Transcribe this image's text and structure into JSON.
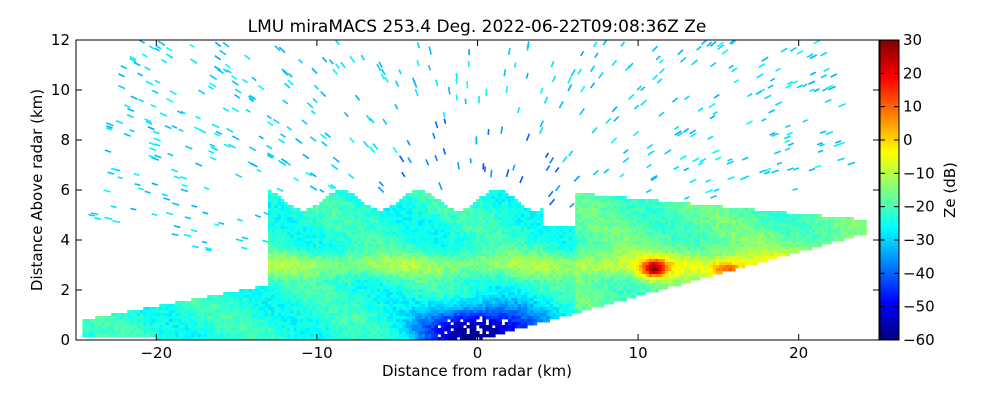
{
  "chart_data": {
    "type": "heatmap",
    "title": "LMU miraMACS 253.4 Deg. 2022-06-22T09:08:36Z  Ze",
    "xlabel": "Distance from radar (km)",
    "ylabel": "Distance Above radar  (km)",
    "xlim": [
      -25,
      25
    ],
    "ylim": [
      0,
      12
    ],
    "x_ticks": [
      -20,
      -10,
      0,
      10,
      20
    ],
    "y_ticks": [
      0,
      2,
      4,
      6,
      8,
      10,
      12
    ],
    "grid": false,
    "scan": {
      "kind": "RHI",
      "max_range_km": 25,
      "left_cut_elevation_deg": 10,
      "right_floor_elevation_deg": 10
    },
    "colorbar": {
      "label": "Ze (dB)",
      "min": -60,
      "max": 30,
      "ticks": [
        30,
        20,
        10,
        0,
        -10,
        -20,
        -30,
        -40,
        -50,
        -60
      ],
      "colormap": "jet",
      "stops": [
        "#00007f",
        "#0000ff",
        "#007fff",
        "#00ffff",
        "#7fff7f",
        "#ffff00",
        "#ff7f00",
        "#ff0000",
        "#7f0000"
      ]
    },
    "features": [
      {
        "region": "sparse noise echoes filling the scan sector above about 6 km",
        "ze_db": -30
      },
      {
        "region": "cloud layer between roughly 0 and 6 km height",
        "ze_db": -20
      },
      {
        "region": "bright band near 3 km height",
        "ze_db": -12
      },
      {
        "region": "strong echo core near x = 11 km, y = 2.9 km",
        "ze_db": 22
      },
      {
        "region": "weak echo region near the radar, x = -3 to 3 km, y = 0 to 1.5 km",
        "ze_db": -50
      }
    ]
  }
}
